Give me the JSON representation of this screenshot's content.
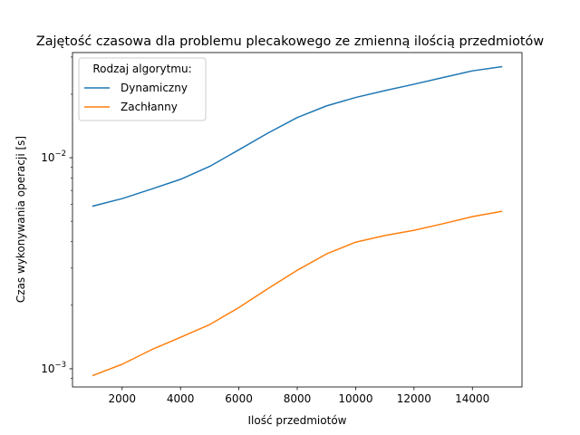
{
  "chart_data": {
    "type": "line",
    "title": "Zajętość czasowa dla problemu plecakowego ze zmienną ilością przedmiotów",
    "xlabel": "Ilość przedmiotów",
    "ylabel": "Czas wykonywania operacji [s]",
    "yscale": "log",
    "xlim": [
      300,
      15700
    ],
    "ylim": [
      0.00082,
      0.0315
    ],
    "x_ticks": [
      2000,
      4000,
      6000,
      8000,
      10000,
      12000,
      14000
    ],
    "x_tick_labels": [
      "2000",
      "4000",
      "6000",
      "8000",
      "10000",
      "12000",
      "14000"
    ],
    "y_ticks": [
      0.001,
      0.01
    ],
    "y_tick_labels": [
      {
        "base": "10",
        "exp": "−3"
      },
      {
        "base": "10",
        "exp": "−2"
      }
    ],
    "grid": false,
    "legend": {
      "title": "Rodzaj algorytmu:",
      "placement": "top-left"
    },
    "x": [
      1000,
      2000,
      3000,
      4000,
      5000,
      6000,
      7000,
      8000,
      9000,
      10000,
      11000,
      12000,
      13000,
      14000,
      15000
    ],
    "series": [
      {
        "name": "Dynamiczny",
        "color": "#1f77b4",
        "values": [
          0.0059,
          0.0064,
          0.0071,
          0.0079,
          0.0091,
          0.0109,
          0.0131,
          0.0155,
          0.0176,
          0.0193,
          0.0208,
          0.0223,
          0.024,
          0.0258,
          0.027
        ]
      },
      {
        "name": "Zachłanny",
        "color": "#ff7f0e",
        "values": [
          0.00093,
          0.00105,
          0.00123,
          0.00141,
          0.00162,
          0.00195,
          0.0024,
          0.00293,
          0.0035,
          0.00398,
          0.00428,
          0.00453,
          0.00487,
          0.00526,
          0.00557
        ]
      }
    ]
  }
}
